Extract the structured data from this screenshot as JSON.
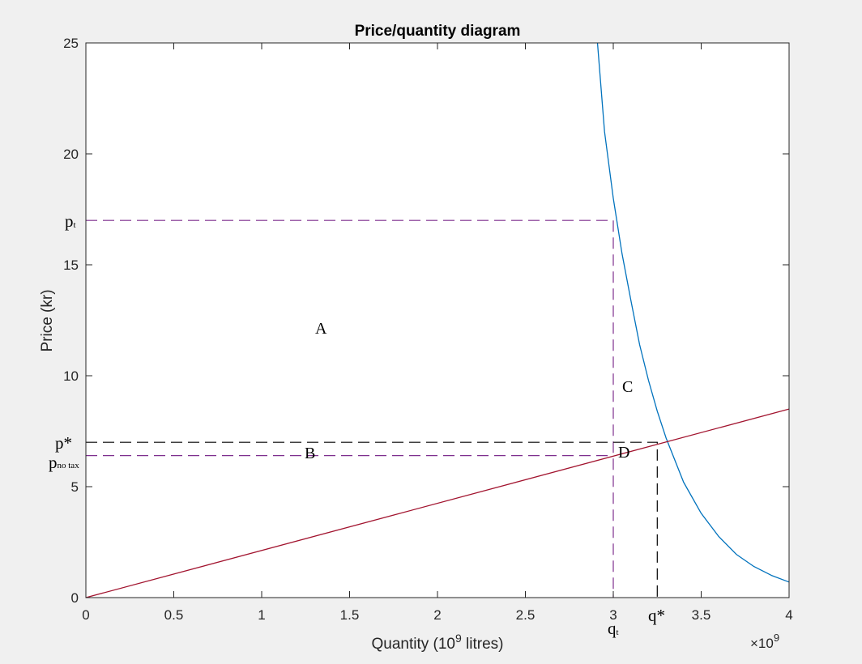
{
  "chart_data": {
    "type": "line",
    "title": "Price/quantity diagram",
    "xlabel": {
      "text": "Quantity (10",
      "sup": "9",
      "tail": " litres)"
    },
    "ylabel": "Price (kr)",
    "x_multiplier": {
      "prefix": "×10",
      "sup": "9"
    },
    "xlim": [
      0,
      4
    ],
    "ylim": [
      0,
      25
    ],
    "xticks": [
      0,
      0.5,
      1,
      1.5,
      2,
      2.5,
      3,
      3.5,
      4
    ],
    "xtick_labels": [
      "0",
      "0.5",
      "1",
      "1.5",
      "2",
      "2.5",
      "3",
      "3.5",
      "4"
    ],
    "yticks": [
      0,
      5,
      10,
      15,
      20,
      25
    ],
    "ytick_labels": [
      "0",
      "5",
      "10",
      "15",
      "20",
      "25"
    ],
    "grid": false,
    "series": [
      {
        "color": "#0072bd",
        "x": [
          2.91,
          2.95,
          3.0,
          3.05,
          3.1,
          3.15,
          3.2,
          3.25,
          3.3,
          3.4,
          3.5,
          3.6,
          3.7,
          3.8,
          3.9,
          4.0
        ],
        "y": [
          25.0,
          21.0,
          18.0,
          15.5,
          13.4,
          11.4,
          9.8,
          8.4,
          7.2,
          5.2,
          3.8,
          2.75,
          1.95,
          1.4,
          1.0,
          0.7
        ]
      },
      {
        "color": "#a2142f",
        "x": [
          0,
          4
        ],
        "y": [
          0,
          8.5
        ]
      }
    ],
    "reference_lines": [
      {
        "color": "#7e2f8e",
        "points": [
          [
            0,
            17.0
          ],
          [
            3.0,
            17.0
          ],
          [
            3.0,
            0
          ]
        ]
      },
      {
        "color": "#7e2f8e",
        "points": [
          [
            0,
            6.4
          ],
          [
            3.0,
            6.4
          ]
        ]
      },
      {
        "color": "#000000",
        "points": [
          [
            0,
            7.0
          ],
          [
            3.25,
            7.0
          ],
          [
            3.25,
            0
          ]
        ]
      }
    ],
    "annotations": {
      "p_t": {
        "main": "p",
        "sub": "t"
      },
      "p_star": "p*",
      "p_no_tax": {
        "main": "p",
        "sub": "no tax"
      },
      "q_t": {
        "main": "q",
        "sub": "t"
      },
      "q_star": "q*",
      "region_a": "A",
      "region_b": "B",
      "region_c": "C",
      "region_d": "D"
    }
  }
}
